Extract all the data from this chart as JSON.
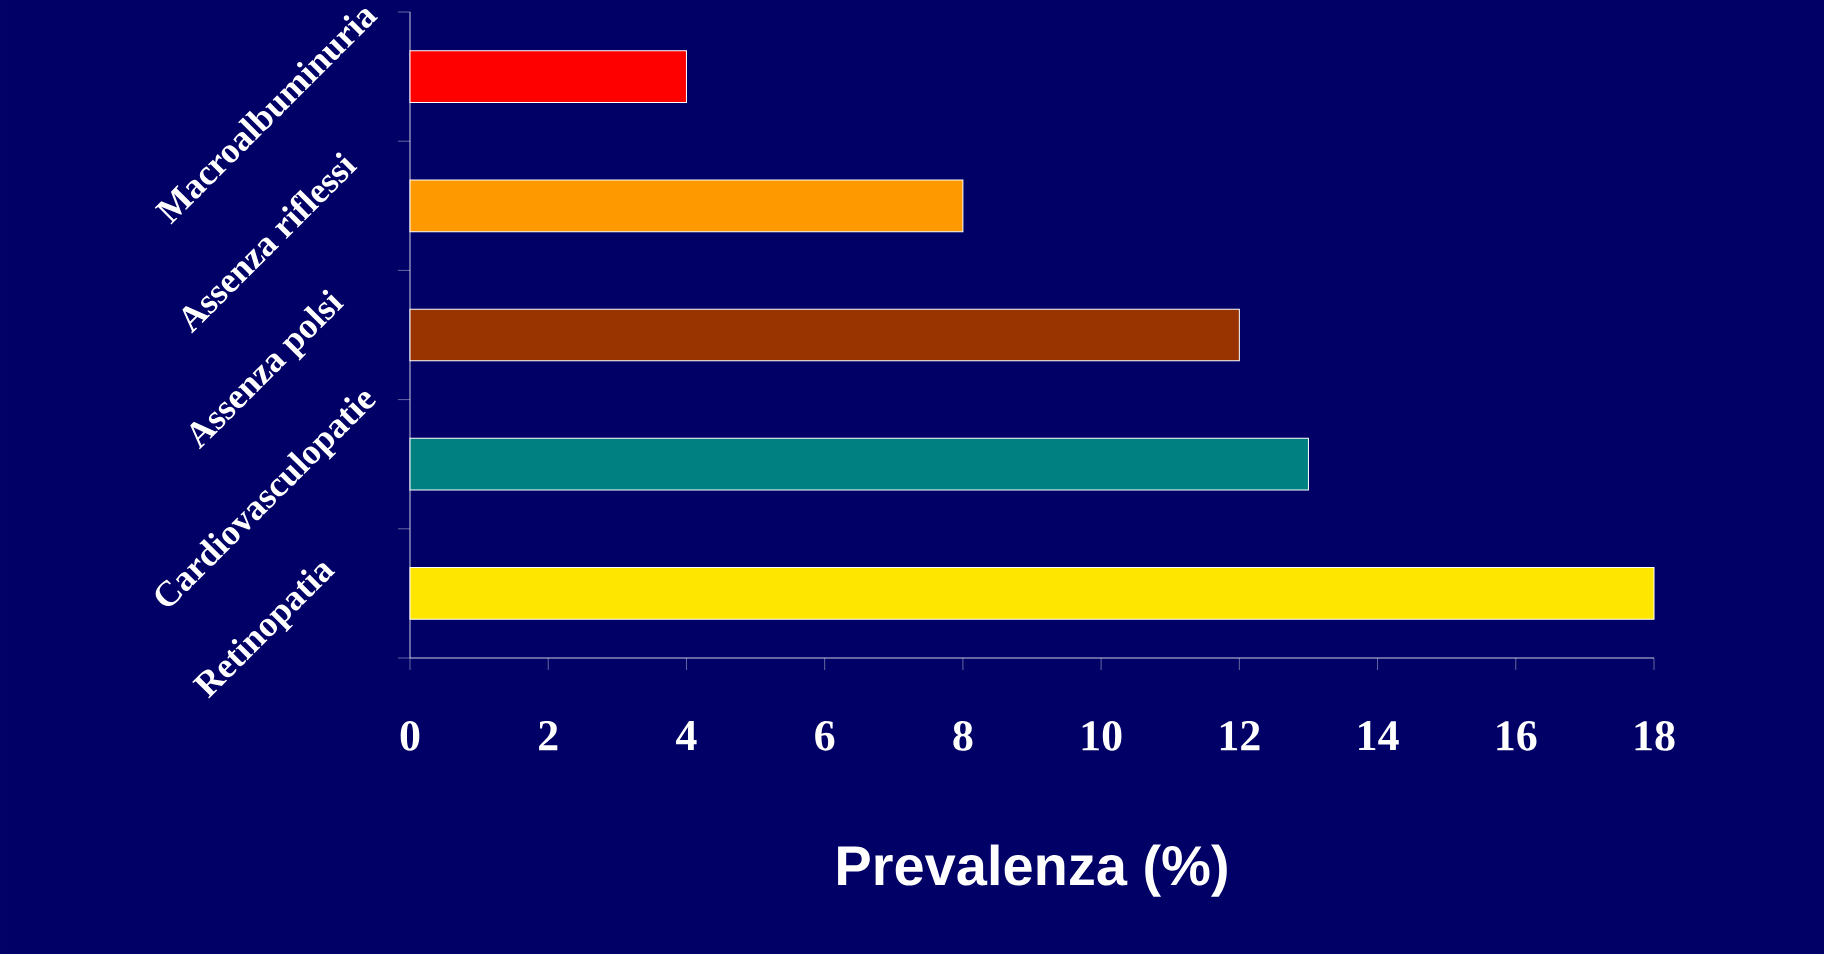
{
  "chart_data": {
    "type": "bar",
    "orientation": "horizontal",
    "xlabel": "Prevalenza (%)",
    "categories": [
      "Macroalbuminuria",
      "Assenza riflessi",
      "Assenza polsi",
      "Cardiovasculopatie",
      "Retinopatia"
    ],
    "values": [
      4,
      8,
      12,
      13,
      18
    ],
    "colors": [
      "#ff0000",
      "#ff9900",
      "#993300",
      "#008080",
      "#ffe600"
    ],
    "xlim": [
      0,
      18
    ],
    "xticks": [
      0,
      2,
      4,
      6,
      8,
      10,
      12,
      14,
      16,
      18
    ]
  }
}
